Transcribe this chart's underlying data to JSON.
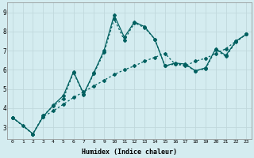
{
  "xlabel": "Humidex (Indice chaleur)",
  "background_color": "#d4ecf0",
  "grid_color": "#c0d8dc",
  "line_color": "#006060",
  "xlim": [
    -0.5,
    23.5
  ],
  "ylim": [
    2.4,
    9.5
  ],
  "line1_x": [
    0,
    1,
    2,
    3,
    4,
    5,
    6,
    7,
    8,
    9,
    10,
    11,
    12,
    13,
    14,
    15,
    16,
    17,
    18,
    19,
    20,
    21,
    22,
    23
  ],
  "line1_y": [
    3.5,
    3.1,
    2.65,
    3.55,
    4.15,
    4.65,
    5.9,
    4.75,
    5.85,
    7.0,
    8.85,
    7.7,
    8.5,
    8.25,
    7.6,
    6.2,
    6.35,
    6.3,
    5.95,
    6.1,
    7.1,
    6.75,
    7.5,
    7.85
  ],
  "line2_x": [
    0,
    2,
    3,
    4,
    5,
    6,
    7,
    8,
    9,
    10,
    11,
    12,
    13,
    14,
    15,
    16,
    17,
    18,
    19,
    20,
    21,
    22,
    23
  ],
  "line2_y": [
    3.5,
    2.65,
    3.6,
    4.1,
    4.5,
    5.85,
    4.7,
    5.8,
    6.9,
    8.65,
    7.55,
    8.45,
    8.2,
    7.6,
    6.2,
    6.3,
    6.25,
    5.95,
    6.05,
    7.05,
    6.7,
    7.45,
    7.85
  ],
  "line3_x": [
    0,
    2,
    3,
    4,
    5,
    6,
    7,
    8,
    9,
    10,
    11,
    12,
    13,
    14,
    15,
    16,
    17,
    18,
    19,
    20,
    21,
    22,
    23
  ],
  "line3_y": [
    3.5,
    2.65,
    3.55,
    3.85,
    4.2,
    4.55,
    4.85,
    5.15,
    5.45,
    5.75,
    6.0,
    6.2,
    6.45,
    6.65,
    6.85,
    6.3,
    6.2,
    6.45,
    6.6,
    6.85,
    7.1,
    7.5,
    7.85
  ]
}
